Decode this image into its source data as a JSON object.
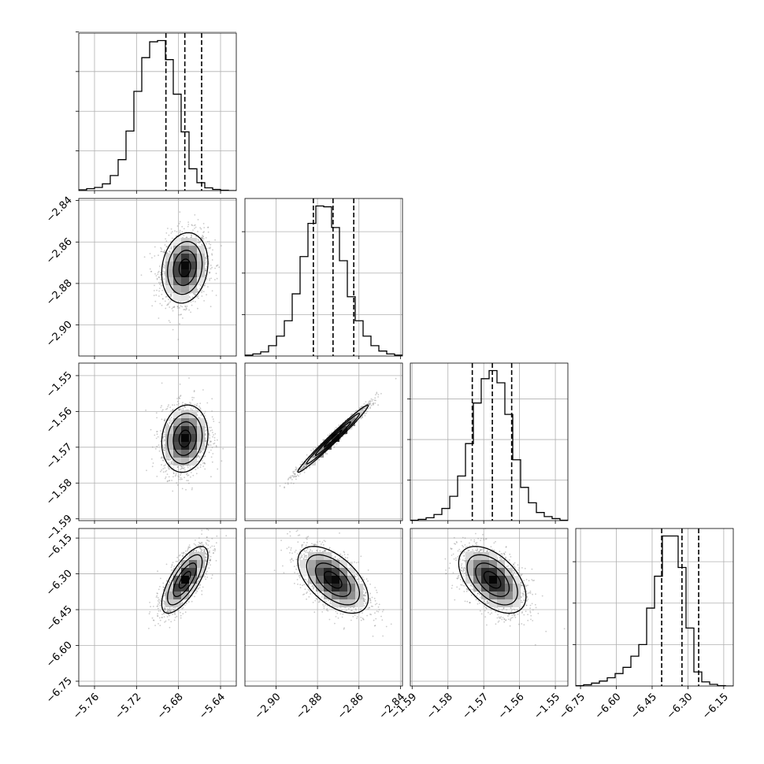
{
  "chart_data": {
    "type": "corner",
    "grid": true,
    "colors": {
      "ink": "#000000",
      "grid": "#b0b0b0",
      "scatter": "#8c8c8c"
    },
    "parameters": [
      {
        "range": [
          -5.775,
          -5.625
        ],
        "ticks": [
          -5.76,
          -5.72,
          -5.68,
          -5.64
        ],
        "tick_labels": [
          "−5.76",
          "−5.72",
          "−5.68",
          "−5.64"
        ],
        "hist_edges_start": -5.775,
        "hist_bin_width": 0.0075,
        "hist_counts": [
          2,
          5,
          8,
          17,
          38,
          78,
          150,
          250,
          335,
          375,
          378,
          330,
          243,
          148,
          55,
          20,
          7,
          3,
          1,
          0
        ],
        "quantiles": [
          -5.692,
          -5.674,
          -5.658
        ],
        "hist_yticks": [
          100,
          200,
          300,
          400
        ]
      },
      {
        "range": [
          -2.915,
          -2.839
        ],
        "ticks": [
          -2.9,
          -2.88,
          -2.86,
          -2.84
        ],
        "tick_labels": [
          "−2.90",
          "−2.88",
          "−2.86",
          "−2.84"
        ],
        "hist_edges_start": -2.915,
        "hist_bin_width": 0.0038,
        "hist_counts": [
          2,
          5,
          10,
          25,
          48,
          85,
          150,
          240,
          320,
          362,
          360,
          310,
          230,
          143,
          85,
          48,
          25,
          12,
          5,
          2
        ],
        "quantiles": [
          -2.882,
          -2.8725,
          -2.8625
        ],
        "hist_yticks": [
          100,
          200,
          300
        ]
      },
      {
        "range": [
          -1.5905,
          -1.5465
        ],
        "ticks": [
          -1.59,
          -1.58,
          -1.57,
          -1.56,
          -1.55
        ],
        "tick_labels": [
          "−1.59",
          "−1.58",
          "−1.57",
          "−1.56",
          "−1.55"
        ],
        "hist_edges_start": -1.5905,
        "hist_bin_width": 0.0022,
        "hist_counts": [
          1,
          3,
          7,
          15,
          30,
          60,
          110,
          190,
          290,
          350,
          370,
          340,
          262,
          150,
          82,
          44,
          20,
          10,
          5,
          1
        ],
        "quantiles": [
          -1.5732,
          -1.5676,
          -1.5622
        ],
        "hist_yticks": [
          100,
          200,
          300
        ]
      },
      {
        "range": [
          -6.77,
          -6.11
        ],
        "ticks": [
          -6.75,
          -6.6,
          -6.45,
          -6.3,
          -6.15
        ],
        "tick_labels": [
          "−6.75",
          "−6.60",
          "−6.45",
          "−6.30",
          "−6.15"
        ],
        "left_tick_labels": [
          "−6.75",
          "−6.60",
          "−6.45",
          "−6.30",
          "−6.15"
        ],
        "hist_edges_start": -6.77,
        "hist_bin_width": 0.033,
        "hist_counts": [
          1,
          3,
          7,
          12,
          20,
          30,
          45,
          72,
          100,
          188,
          265,
          362,
          362,
          286,
          140,
          34,
          10,
          4,
          1,
          0
        ],
        "quantiles": [
          -6.41,
          -6.325,
          -6.255
        ],
        "hist_yticks": [
          100,
          200,
          300
        ]
      }
    ],
    "pairs": [
      {
        "row": 1,
        "col": 0,
        "center": [
          -5.674,
          -2.8725
        ],
        "sd": [
          0.011,
          0.0085
        ],
        "rho": 0.15
      },
      {
        "row": 2,
        "col": 0,
        "center": [
          -5.674,
          -1.5676
        ],
        "sd": [
          0.011,
          0.0047
        ],
        "rho": 0.12
      },
      {
        "row": 2,
        "col": 1,
        "center": [
          -2.8725,
          -1.5676
        ],
        "sd": [
          0.0085,
          0.0047
        ],
        "rho": 0.985
      },
      {
        "row": 3,
        "col": 0,
        "center": [
          -5.674,
          -6.325
        ],
        "sd": [
          0.011,
          0.07
        ],
        "rho": 0.72
      },
      {
        "row": 3,
        "col": 1,
        "center": [
          -2.8725,
          -6.325
        ],
        "sd": [
          0.0085,
          0.07
        ],
        "rho": -0.55
      },
      {
        "row": 3,
        "col": 2,
        "center": [
          -1.5676,
          -6.325
        ],
        "sd": [
          0.0047,
          0.07
        ],
        "rho": -0.5
      }
    ]
  }
}
